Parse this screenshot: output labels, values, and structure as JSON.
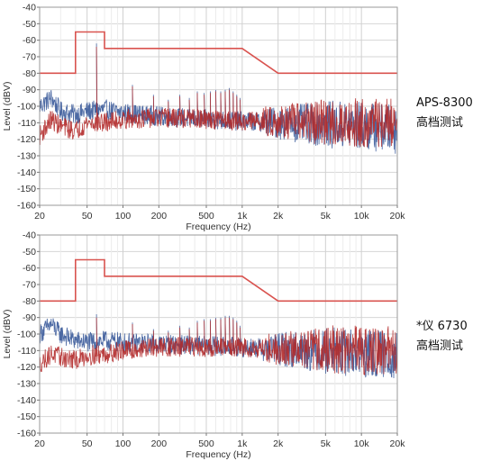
{
  "chart_data": [
    {
      "type": "line",
      "xlabel": "Frequency (Hz)",
      "ylabel": "Level (dBV)",
      "xscale": "log",
      "xlim": [
        20,
        20000
      ],
      "ylim": [
        -160,
        -40
      ],
      "x_ticks": [
        20,
        50,
        100,
        200,
        500,
        1000,
        2000,
        5000,
        10000,
        20000
      ],
      "x_tick_labels": [
        "20",
        "50",
        "100",
        "200",
        "500",
        "1k",
        "2k",
        "5k",
        "10k",
        "20k"
      ],
      "x_minor_ticks": [
        30,
        40,
        60,
        70,
        80,
        90,
        300,
        400,
        600,
        700,
        800,
        900,
        3000,
        4000,
        6000,
        7000,
        8000,
        9000
      ],
      "x_minor_tick_labels": [
        "",
        "",
        "",
        "",
        "",
        "",
        "",
        "",
        "",
        "",
        "",
        "",
        "",
        "",
        "",
        "",
        "",
        ""
      ],
      "y_ticks": [
        -40,
        -50,
        -60,
        -70,
        -80,
        -90,
        -100,
        -110,
        -120,
        -130,
        -140,
        -150,
        -160
      ],
      "grid": true,
      "side_label": [
        "APS-8300",
        "高档测试"
      ],
      "limit_line": {
        "color": "#d9534f",
        "x": [
          20,
          40,
          40,
          70,
          70,
          1000,
          2000,
          20000
        ],
        "y": [
          -80,
          -80,
          -55,
          -55,
          -65,
          -65,
          -80,
          -80
        ]
      },
      "series": [
        {
          "color": "#3a5a9a",
          "noise_x": [
            20,
            25,
            30,
            40,
            50,
            70,
            100,
            200,
            500,
            1000,
            2000,
            5000,
            10000,
            20000
          ],
          "noise_y": [
            -100,
            -95,
            -103,
            -105,
            -103,
            -102,
            -104,
            -106,
            -108,
            -109,
            -110,
            -111,
            -112,
            -114
          ],
          "spike_x": [
            60,
            120,
            180,
            240,
            300,
            360,
            420,
            480,
            540,
            600,
            660,
            720,
            780,
            840,
            900,
            960
          ],
          "spike_y": [
            -62,
            -87,
            -93,
            -96,
            -93,
            -95,
            -91,
            -92,
            -91,
            -90,
            -91,
            -90,
            -89,
            -91,
            -93,
            -95
          ]
        },
        {
          "color": "#b22a2a",
          "noise_x": [
            20,
            25,
            30,
            40,
            50,
            70,
            100,
            200,
            500,
            1000,
            2000,
            5000,
            10000,
            20000
          ],
          "noise_y": [
            -118,
            -108,
            -112,
            -115,
            -110,
            -110,
            -108,
            -107,
            -108,
            -109,
            -109,
            -110,
            -110,
            -110
          ],
          "spike_x": [
            60,
            120,
            180,
            240,
            300,
            360,
            420,
            480,
            540,
            600,
            660,
            720,
            780,
            840,
            900,
            960
          ],
          "spike_y": [
            -64,
            -88,
            -94,
            -97,
            -94,
            -96,
            -92,
            -93,
            -92,
            -91,
            -92,
            -91,
            -90,
            -92,
            -94,
            -96
          ]
        }
      ]
    },
    {
      "type": "line",
      "xlabel": "Frequency (Hz)",
      "ylabel": "Level (dBV)",
      "xscale": "log",
      "xlim": [
        20,
        20000
      ],
      "ylim": [
        -160,
        -40
      ],
      "x_ticks": [
        20,
        50,
        100,
        200,
        500,
        1000,
        2000,
        5000,
        10000,
        20000
      ],
      "x_tick_labels": [
        "20",
        "50",
        "100",
        "200",
        "500",
        "1k",
        "2k",
        "5k",
        "10k",
        "20k"
      ],
      "x_minor_ticks": [
        30,
        40,
        60,
        70,
        80,
        90,
        300,
        400,
        600,
        700,
        800,
        900,
        3000,
        4000,
        6000,
        7000,
        8000,
        9000
      ],
      "x_minor_tick_labels": [
        "",
        "",
        "",
        "",
        "",
        "",
        "",
        "",
        "",
        "",
        "",
        "",
        "",
        "",
        "",
        "",
        "",
        ""
      ],
      "y_ticks": [
        -40,
        -50,
        -60,
        -70,
        -80,
        -90,
        -100,
        -110,
        -120,
        -130,
        -140,
        -150,
        -160
      ],
      "grid": true,
      "side_label": [
        "*仪 6730",
        "高档测试"
      ],
      "limit_line": {
        "color": "#d9534f",
        "x": [
          20,
          40,
          40,
          70,
          70,
          1000,
          2000,
          20000
        ],
        "y": [
          -80,
          -80,
          -55,
          -55,
          -65,
          -65,
          -80,
          -80
        ]
      },
      "series": [
        {
          "color": "#3a5a9a",
          "noise_x": [
            20,
            25,
            30,
            40,
            50,
            70,
            100,
            200,
            500,
            1000,
            2000,
            5000,
            10000,
            20000
          ],
          "noise_y": [
            -100,
            -94,
            -100,
            -104,
            -105,
            -104,
            -105,
            -106,
            -107,
            -108,
            -109,
            -110,
            -112,
            -113
          ],
          "spike_x": [
            60,
            120,
            180,
            240,
            300,
            360,
            420,
            480,
            540,
            600,
            660,
            720,
            780,
            840,
            900,
            960
          ],
          "spike_y": [
            -88,
            -93,
            -97,
            -98,
            -95,
            -96,
            -92,
            -91,
            -91,
            -90,
            -90,
            -89,
            -89,
            -90,
            -92,
            -95
          ]
        },
        {
          "color": "#b22a2a",
          "noise_x": [
            20,
            25,
            30,
            40,
            50,
            70,
            100,
            200,
            500,
            1000,
            2000,
            5000,
            10000,
            20000
          ],
          "noise_y": [
            -118,
            -112,
            -114,
            -116,
            -113,
            -112,
            -110,
            -108,
            -108,
            -108,
            -109,
            -109,
            -110,
            -110
          ],
          "spike_x": [
            60,
            120,
            180,
            240,
            300,
            360,
            420,
            480,
            540,
            600,
            660,
            720,
            780,
            840,
            900,
            960
          ],
          "spike_y": [
            -90,
            -94,
            -98,
            -99,
            -96,
            -97,
            -93,
            -92,
            -92,
            -91,
            -91,
            -90,
            -90,
            -91,
            -93,
            -96
          ]
        }
      ]
    }
  ]
}
